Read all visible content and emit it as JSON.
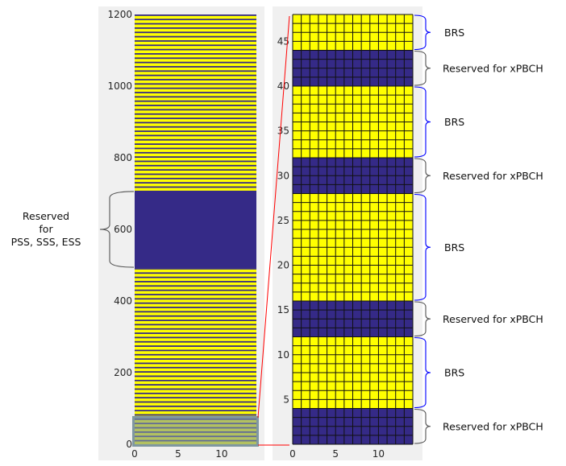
{
  "colors": {
    "yellow": "#ffff00",
    "navy": "#352a87",
    "grid": "#111111",
    "axes_bg": "#f0f0f0",
    "zoom_line": "#ff0000",
    "zoom_box": "#7f97a1",
    "brace_brs": "#0000ff",
    "brace_reserved": "#555555"
  },
  "chart_data": [
    {
      "type": "heatmap",
      "name": "full-resource-grid",
      "x": {
        "range": [
          0,
          14
        ],
        "ticks": [
          0,
          5,
          10
        ],
        "tick_labels": [
          "0",
          "5",
          "10"
        ]
      },
      "y": {
        "range": [
          0,
          1200
        ],
        "ticks": [
          0,
          200,
          400,
          600,
          800,
          1000,
          1200
        ],
        "tick_labels": [
          "0",
          "200",
          "400",
          "600",
          "800",
          "1000",
          "1200"
        ]
      },
      "row_period": 12,
      "stripe_rows": [
        8,
        9,
        10,
        11
      ],
      "reserved_band": [
        492,
        708
      ],
      "zoom_window": [
        0,
        72
      ],
      "annotations": [
        {
          "text_lines": [
            "Reserved",
            "for",
            "PSS, SSS, ESS"
          ],
          "y_range": [
            492,
            708
          ]
        }
      ]
    },
    {
      "type": "heatmap",
      "name": "zoomed-resource-grid",
      "x": {
        "range": [
          0,
          14
        ],
        "ticks": [
          0,
          5,
          10
        ],
        "tick_labels": [
          "0",
          "5",
          "10"
        ]
      },
      "y": {
        "range": [
          0,
          48
        ],
        "ticks": [
          5,
          10,
          15,
          20,
          25,
          30,
          35,
          40,
          45
        ],
        "tick_labels": [
          "5",
          "10",
          "15",
          "20",
          "25",
          "30",
          "35",
          "40",
          "45"
        ]
      },
      "blocks": [
        {
          "y_range": [
            0,
            4
          ],
          "type": "reserved",
          "label": "Reserved for xPBCH"
        },
        {
          "y_range": [
            4,
            12
          ],
          "type": "brs",
          "label": "BRS"
        },
        {
          "y_range": [
            12,
            16
          ],
          "type": "reserved",
          "label": "Reserved for xPBCH"
        },
        {
          "y_range": [
            16,
            28
          ],
          "type": "brs",
          "label": "BRS"
        },
        {
          "y_range": [
            28,
            32
          ],
          "type": "reserved",
          "label": "Reserved for xPBCH"
        },
        {
          "y_range": [
            32,
            40
          ],
          "type": "brs",
          "label": "BRS"
        },
        {
          "y_range": [
            40,
            44
          ],
          "type": "reserved",
          "label": "Reserved for xPBCH"
        },
        {
          "y_range": [
            44,
            48
          ],
          "type": "brs",
          "label": "BRS"
        }
      ]
    }
  ]
}
